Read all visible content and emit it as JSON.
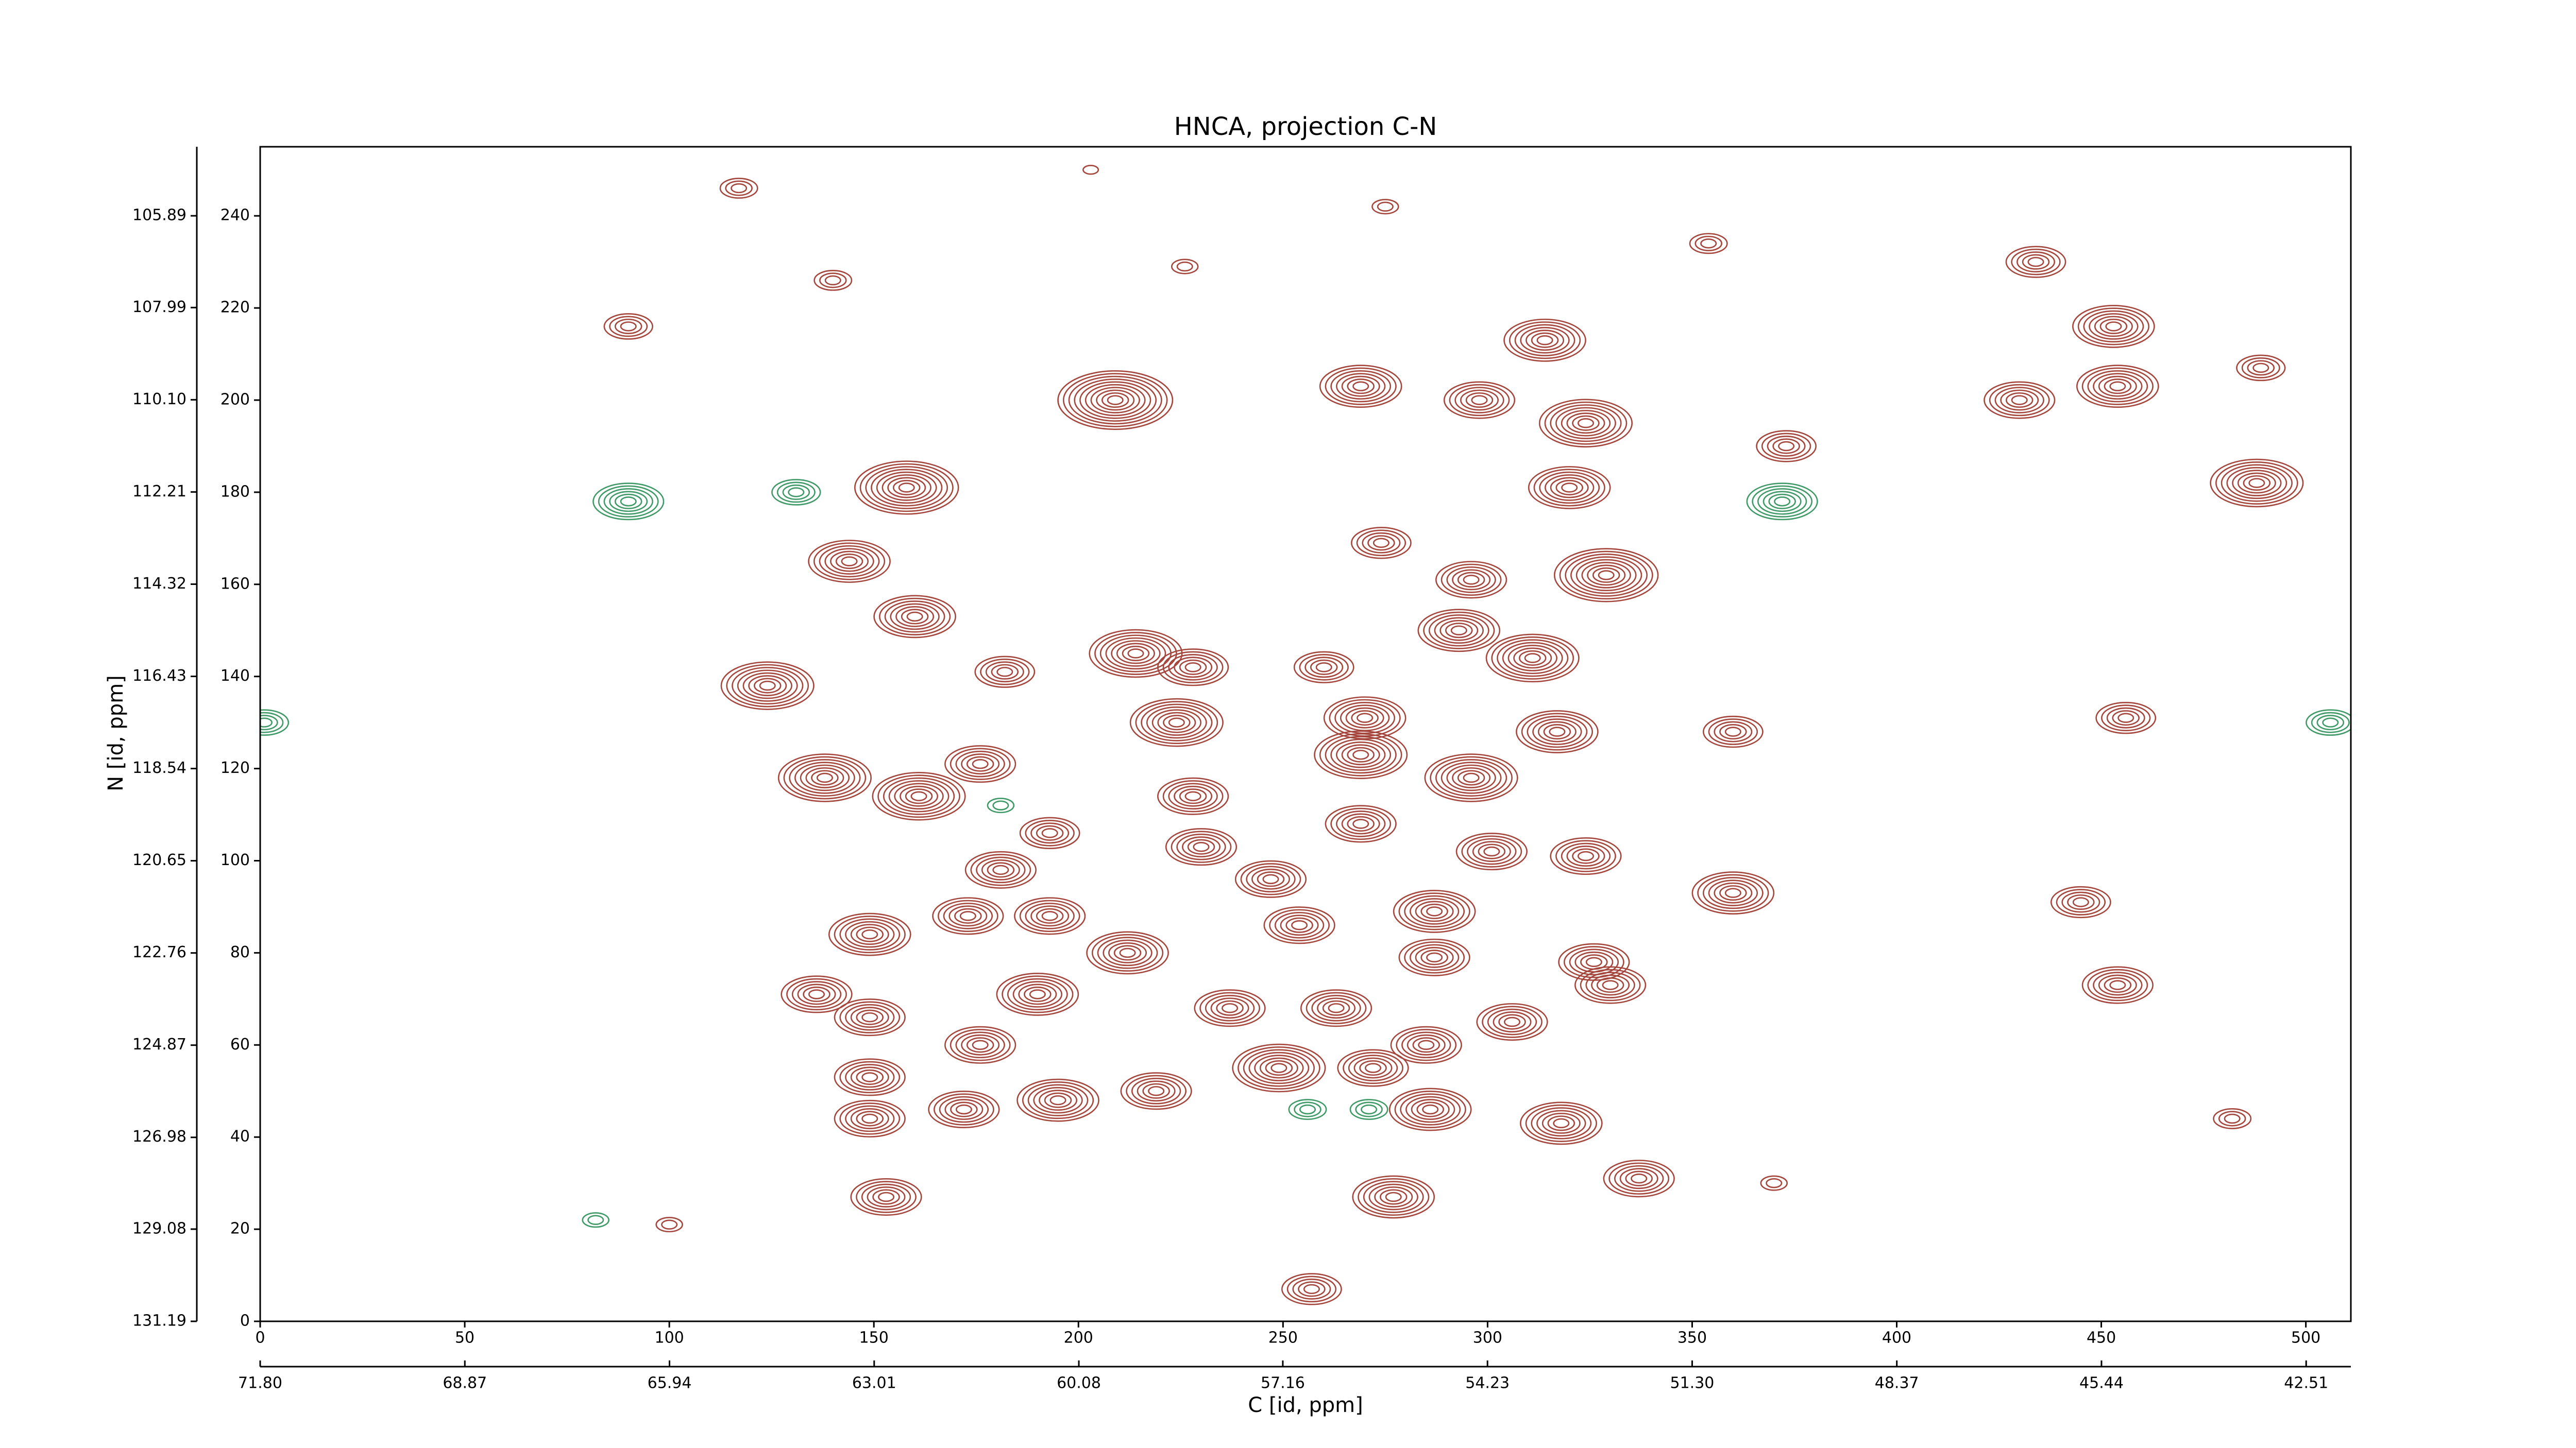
{
  "chart_data": {
    "type": "contour",
    "title": "HNCA, projection C-N",
    "xlabel": "C [id, ppm]",
    "ylabel": "N [id, ppm]",
    "xlim": [
      0,
      511
    ],
    "ylim": [
      0,
      255
    ],
    "xticks": [
      0,
      50,
      100,
      150,
      200,
      250,
      300,
      350,
      400,
      450,
      500
    ],
    "yticks": [
      0,
      20,
      40,
      60,
      80,
      100,
      120,
      140,
      160,
      180,
      200,
      220,
      240
    ],
    "x2lim": [
      71.8,
      41.87
    ],
    "x2ticks": [
      {
        "value": 71.8,
        "label": "71.80"
      },
      68.87,
      65.94,
      63.01,
      {
        "value": 60.08,
        "label": "60.08"
      },
      57.16,
      54.23,
      {
        "value": 51.3,
        "label": "51.30"
      },
      48.37,
      45.44,
      42.51
    ],
    "y2lim": [
      131.19,
      104.31
    ],
    "y2ticks": [
      131.19,
      129.08,
      126.98,
      124.87,
      122.76,
      120.65,
      118.54,
      116.43,
      114.32,
      112.21,
      {
        "value": 110.1,
        "label": "110.10"
      },
      107.99,
      105.89
    ],
    "positive_color": "#a5463d",
    "negative_color": "#3f9a68",
    "x": [
      209,
      269,
      298,
      314,
      324,
      320,
      329,
      296,
      274,
      158,
      144,
      160,
      182,
      214,
      228,
      224,
      260,
      293,
      311,
      317,
      296,
      270,
      269,
      124,
      138,
      161,
      176,
      228,
      193,
      181,
      149,
      173,
      193,
      230,
      247,
      269,
      301,
      324,
      287,
      254,
      212,
      287,
      326,
      136,
      149,
      190,
      176,
      237,
      263,
      285,
      306,
      330,
      219,
      249,
      272,
      195,
      172,
      149,
      149,
      286,
      318,
      337,
      277,
      153,
      257,
      360,
      360,
      454,
      445,
      456,
      488,
      454,
      430,
      453,
      434,
      489,
      90,
      90,
      372,
      131,
      1,
      506,
      256,
      271,
      181,
      373,
      354,
      117,
      140,
      203,
      226,
      275,
      100,
      82,
      482,
      370
    ],
    "y": [
      200,
      203,
      200,
      213,
      195,
      181,
      162,
      161,
      169,
      181,
      165,
      153,
      141,
      145,
      142,
      130,
      142,
      150,
      144,
      128,
      118,
      131,
      123,
      138,
      118,
      114,
      121,
      114,
      106,
      98,
      84,
      88,
      88,
      103,
      96,
      108,
      102,
      101,
      89,
      86,
      80,
      79,
      78,
      71,
      66,
      71,
      60,
      68,
      68,
      60,
      65,
      73,
      50,
      55,
      55,
      48,
      46,
      53,
      44,
      46,
      43,
      31,
      27,
      27,
      7,
      93,
      128,
      73,
      91,
      131,
      182,
      203,
      200,
      216,
      230,
      207,
      216,
      178,
      178,
      180,
      130,
      130,
      46,
      46,
      112,
      190,
      234,
      246,
      226,
      250,
      229,
      242,
      21,
      22,
      44,
      30
    ],
    "z": [
      10,
      7,
      6,
      7,
      8,
      7,
      9,
      6,
      5,
      9,
      7,
      7,
      5,
      8,
      6,
      8,
      5,
      7,
      8,
      7,
      8,
      7,
      8,
      8,
      8,
      8,
      6,
      6,
      5,
      6,
      7,
      6,
      6,
      6,
      6,
      6,
      6,
      6,
      7,
      6,
      7,
      6,
      6,
      6,
      6,
      7,
      6,
      6,
      6,
      6,
      6,
      6,
      6,
      8,
      6,
      7,
      6,
      6,
      6,
      7,
      7,
      6,
      7,
      6,
      5,
      7,
      5,
      6,
      5,
      5,
      8,
      7,
      6,
      7,
      5,
      4,
      4,
      -6,
      -6,
      -4,
      -4,
      -4,
      -3,
      -3,
      -2,
      5,
      3,
      3,
      3,
      1,
      2,
      2,
      2,
      -2,
      3,
      2
    ]
  }
}
